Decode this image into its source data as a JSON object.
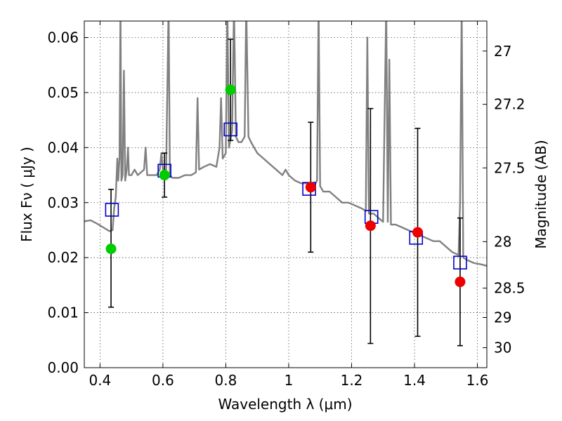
{
  "chart_data": {
    "type": "scatter",
    "xlabel": "Wavelength  λ (μm)",
    "ylabel": "Flux  Fν  ( μJy )",
    "y2label": "Magnitude (AB)",
    "xlim": [
      0.35,
      1.63
    ],
    "ylim": [
      0.0,
      0.063
    ],
    "grid": true,
    "x_ticks": [
      "0.4",
      "0.6",
      "0.8",
      "1",
      "1.2",
      "1.4",
      "1.6"
    ],
    "x_tick_values": [
      0.4,
      0.6,
      0.8,
      1.0,
      1.2,
      1.4,
      1.6
    ],
    "y_ticks": [
      "0.00",
      "0.01",
      "0.02",
      "0.03",
      "0.04",
      "0.05",
      "0.06"
    ],
    "y_tick_values": [
      0.0,
      0.01,
      0.02,
      0.03,
      0.04,
      0.05,
      0.06
    ],
    "mag_ticks": [
      "27",
      "27.2",
      "27.5",
      "28",
      "28.5",
      "29",
      "30"
    ],
    "mag_tick_values": [
      27.0,
      27.2,
      27.5,
      28.0,
      28.5,
      29.0,
      30.0
    ],
    "series": [
      {
        "kind": "line",
        "color": "#808080",
        "points": [
          [
            0.35,
            0.0266
          ],
          [
            0.37,
            0.0268
          ],
          [
            0.39,
            0.0262
          ],
          [
            0.41,
            0.0255
          ],
          [
            0.43,
            0.0248
          ],
          [
            0.44,
            0.025
          ],
          [
            0.445,
            0.029
          ],
          [
            0.45,
            0.031
          ],
          [
            0.455,
            0.038
          ],
          [
            0.458,
            0.034
          ],
          [
            0.462,
            0.038
          ],
          [
            0.465,
            0.066
          ],
          [
            0.468,
            0.034
          ],
          [
            0.472,
            0.035
          ],
          [
            0.476,
            0.054
          ],
          [
            0.48,
            0.034
          ],
          [
            0.485,
            0.036
          ],
          [
            0.489,
            0.04
          ],
          [
            0.492,
            0.035
          ],
          [
            0.5,
            0.035
          ],
          [
            0.51,
            0.036
          ],
          [
            0.52,
            0.035
          ],
          [
            0.54,
            0.036
          ],
          [
            0.545,
            0.04
          ],
          [
            0.55,
            0.035
          ],
          [
            0.57,
            0.035
          ],
          [
            0.58,
            0.035
          ],
          [
            0.59,
            0.036
          ],
          [
            0.595,
            0.039
          ],
          [
            0.6,
            0.036
          ],
          [
            0.61,
            0.035
          ],
          [
            0.618,
            0.066
          ],
          [
            0.622,
            0.035
          ],
          [
            0.63,
            0.0345
          ],
          [
            0.65,
            0.0345
          ],
          [
            0.67,
            0.035
          ],
          [
            0.69,
            0.035
          ],
          [
            0.705,
            0.0355
          ],
          [
            0.71,
            0.049
          ],
          [
            0.715,
            0.036
          ],
          [
            0.73,
            0.0365
          ],
          [
            0.75,
            0.037
          ],
          [
            0.77,
            0.0365
          ],
          [
            0.78,
            0.04
          ],
          [
            0.785,
            0.049
          ],
          [
            0.79,
            0.038
          ],
          [
            0.8,
            0.039
          ],
          [
            0.805,
            0.066
          ],
          [
            0.81,
            0.04
          ],
          [
            0.82,
            0.043
          ],
          [
            0.826,
            0.066
          ],
          [
            0.832,
            0.042
          ],
          [
            0.84,
            0.041
          ],
          [
            0.85,
            0.041
          ],
          [
            0.86,
            0.042
          ],
          [
            0.865,
            0.066
          ],
          [
            0.872,
            0.042
          ],
          [
            0.88,
            0.041
          ],
          [
            0.9,
            0.039
          ],
          [
            0.92,
            0.038
          ],
          [
            0.94,
            0.037
          ],
          [
            0.96,
            0.036
          ],
          [
            0.98,
            0.035
          ],
          [
            0.99,
            0.036
          ],
          [
            1.0,
            0.035
          ],
          [
            1.02,
            0.034
          ],
          [
            1.04,
            0.0335
          ],
          [
            1.06,
            0.0335
          ],
          [
            1.08,
            0.033
          ],
          [
            1.09,
            0.034
          ],
          [
            1.095,
            0.066
          ],
          [
            1.1,
            0.033
          ],
          [
            1.11,
            0.032
          ],
          [
            1.13,
            0.032
          ],
          [
            1.15,
            0.031
          ],
          [
            1.17,
            0.03
          ],
          [
            1.19,
            0.03
          ],
          [
            1.21,
            0.0295
          ],
          [
            1.23,
            0.029
          ],
          [
            1.245,
            0.0285
          ],
          [
            1.25,
            0.06
          ],
          [
            1.255,
            0.028
          ],
          [
            1.27,
            0.028
          ],
          [
            1.29,
            0.027
          ],
          [
            1.3,
            0.0265
          ],
          [
            1.31,
            0.066
          ],
          [
            1.315,
            0.0265
          ],
          [
            1.32,
            0.056
          ],
          [
            1.325,
            0.026
          ],
          [
            1.34,
            0.026
          ],
          [
            1.36,
            0.0255
          ],
          [
            1.38,
            0.025
          ],
          [
            1.4,
            0.0245
          ],
          [
            1.42,
            0.024
          ],
          [
            1.44,
            0.0235
          ],
          [
            1.46,
            0.023
          ],
          [
            1.48,
            0.023
          ],
          [
            1.5,
            0.022
          ],
          [
            1.52,
            0.021
          ],
          [
            1.54,
            0.0205
          ],
          [
            1.545,
            0.03
          ],
          [
            1.55,
            0.066
          ],
          [
            1.555,
            0.02
          ],
          [
            1.57,
            0.0195
          ],
          [
            1.59,
            0.019
          ],
          [
            1.61,
            0.0188
          ],
          [
            1.63,
            0.0185
          ]
        ]
      },
      {
        "kind": "scatter-square",
        "color": "#0000cc",
        "x": [
          0.438,
          0.605,
          0.815,
          1.065,
          1.263,
          1.405,
          1.545
        ],
        "y": [
          0.0287,
          0.0358,
          0.0433,
          0.0325,
          0.0274,
          0.0236,
          0.0191
        ]
      },
      {
        "kind": "scatter-circle",
        "color": "#00cc00",
        "x": [
          0.435,
          0.605,
          0.815
        ],
        "y": [
          0.0216,
          0.035,
          0.0505
        ],
        "err_low": [
          0.011,
          0.031,
          0.0413
        ],
        "err_high": [
          0.0324,
          0.039,
          0.0597
        ]
      },
      {
        "kind": "scatter-circle",
        "color": "#ee0000",
        "x": [
          1.07,
          1.26,
          1.41,
          1.545
        ],
        "y": [
          0.0328,
          0.0258,
          0.0246,
          0.0156
        ],
        "err_low": [
          0.021,
          0.0044,
          0.0057,
          0.004
        ],
        "err_high": [
          0.0446,
          0.0471,
          0.0435,
          0.0272
        ]
      }
    ]
  }
}
